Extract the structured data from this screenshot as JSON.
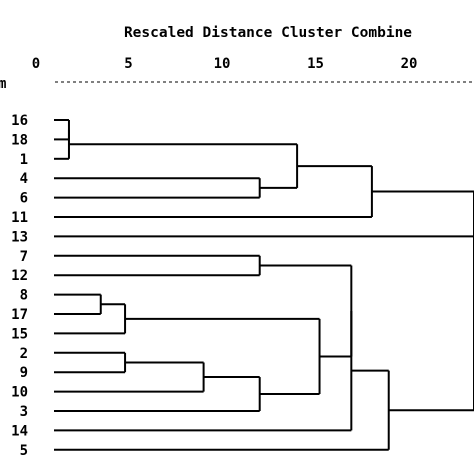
{
  "chart_data": {
    "type": "dendrogram",
    "title": "Rescaled Distance Cluster Combine",
    "axis_label_fragment": "m",
    "xlim": [
      0,
      22.5
    ],
    "ticks": [
      0,
      5,
      10,
      15,
      20
    ],
    "tick_labels": [
      "0",
      "5",
      "10",
      "15",
      "20"
    ],
    "leaves": [
      "16",
      "18",
      "1",
      "4",
      "6",
      "11",
      "13",
      "7",
      "12",
      "8",
      "17",
      "15",
      "2",
      "9",
      "10",
      "3",
      "14",
      "5"
    ],
    "merges": [
      {
        "a": "L16",
        "b": "L18",
        "distance": 0.8
      },
      {
        "a": "M0",
        "b": "L1",
        "distance": 0.8
      },
      {
        "a": "L4",
        "b": "L6",
        "distance": 11.0
      },
      {
        "a": "M1",
        "b": "M2",
        "distance": 13.0
      },
      {
        "a": "M3",
        "b": "L11",
        "distance": 17.0
      },
      {
        "a": "M4",
        "b": "L13",
        "distance": 22.5
      },
      {
        "a": "L7",
        "b": "L12",
        "distance": 11.0
      },
      {
        "a": "L8",
        "b": "L17",
        "distance": 2.5
      },
      {
        "a": "M7",
        "b": "L15",
        "distance": 3.8
      },
      {
        "a": "L2",
        "b": "L9",
        "distance": 3.8
      },
      {
        "a": "M9",
        "b": "L10",
        "distance": 8.0
      },
      {
        "a": "M10",
        "b": "L3",
        "distance": 11.0
      },
      {
        "a": "M8",
        "b": "M11",
        "distance": 14.2
      },
      {
        "a": "M6",
        "b": "M12",
        "distance": 15.9
      },
      {
        "a": "M13",
        "b": "L14",
        "distance": 15.9
      },
      {
        "a": "M14",
        "b": "L5",
        "distance": 17.9
      },
      {
        "a": "M15",
        "b": "M5",
        "distance": 22.5
      }
    ]
  }
}
